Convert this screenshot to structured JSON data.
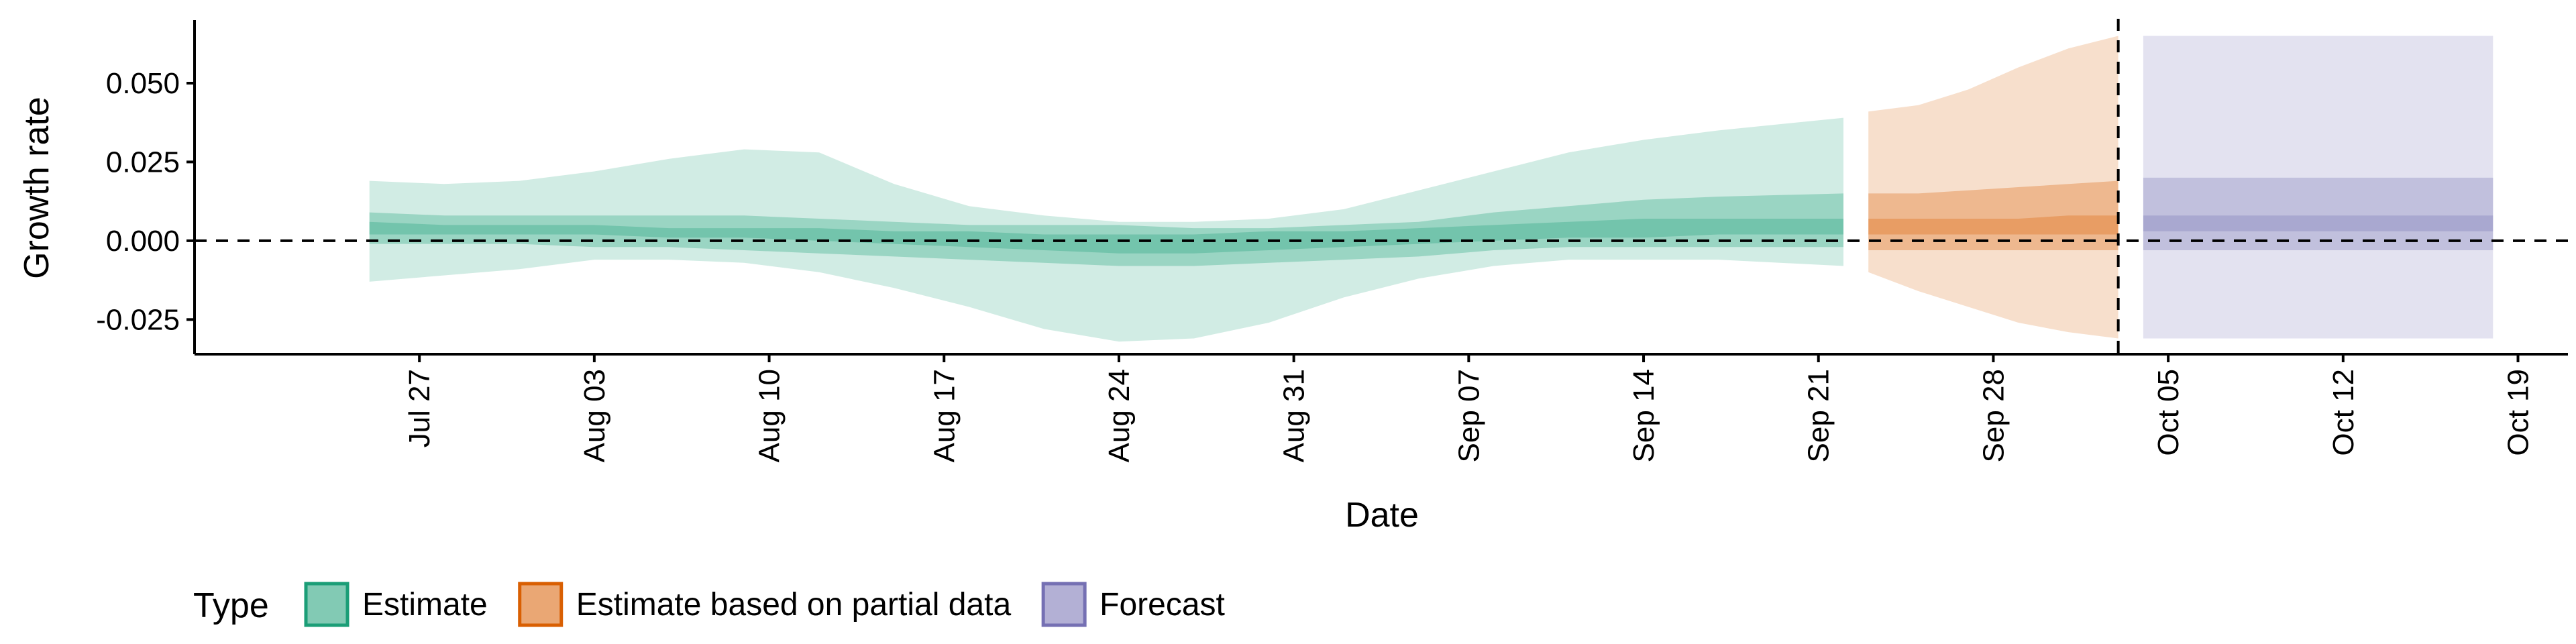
{
  "chart_data": {
    "type": "area",
    "xlabel": "Date",
    "ylabel": "Growth rate",
    "x_ticks": [
      "2020-07-27",
      "2020-08-03",
      "2020-08-10",
      "2020-08-17",
      "2020-08-24",
      "2020-08-31",
      "2020-09-07",
      "2020-09-14",
      "2020-09-21",
      "2020-09-28",
      "2020-10-05",
      "2020-10-12",
      "2020-10-19"
    ],
    "x_tick_labels": [
      "Jul 27",
      "Aug 03",
      "Aug 10",
      "Aug 17",
      "Aug 24",
      "Aug 31",
      "Sep 07",
      "Sep 14",
      "Sep 21",
      "Sep 28",
      "Oct 05",
      "Oct 12",
      "Oct 19"
    ],
    "xlim": [
      "2020-07-18",
      "2020-10-21"
    ],
    "y_ticks": [
      0.05,
      0.025,
      0.0,
      -0.025
    ],
    "y_tick_labels": [
      "0.050",
      "0.025",
      "0.000",
      "-0.025"
    ],
    "ylim": [
      -0.036,
      0.07
    ],
    "reference_lines": [
      {
        "axis": "y",
        "value": 0.0,
        "style": "dashed"
      },
      {
        "axis": "x",
        "value": "2020-10-03",
        "style": "dashed"
      }
    ],
    "legend": {
      "title": "Type",
      "position": "bottom",
      "entries": [
        {
          "label": "Estimate",
          "color": "#1b9e77"
        },
        {
          "label": "Estimate based on partial data",
          "color": "#d95f02"
        },
        {
          "label": "Forecast",
          "color": "#7570b3"
        }
      ]
    },
    "series": [
      {
        "name": "Estimate",
        "color": "#1b9e77",
        "x": [
          "2020-07-25",
          "2020-07-28",
          "2020-07-31",
          "2020-08-03",
          "2020-08-06",
          "2020-08-09",
          "2020-08-12",
          "2020-08-15",
          "2020-08-18",
          "2020-08-21",
          "2020-08-24",
          "2020-08-27",
          "2020-08-30",
          "2020-09-02",
          "2020-09-05",
          "2020-09-08",
          "2020-09-11",
          "2020-09-14",
          "2020-09-17",
          "2020-09-22"
        ],
        "upper_90": [
          0.019,
          0.018,
          0.019,
          0.022,
          0.026,
          0.029,
          0.028,
          0.018,
          0.011,
          0.008,
          0.006,
          0.006,
          0.007,
          0.01,
          0.016,
          0.022,
          0.028,
          0.032,
          0.035,
          0.039
        ],
        "upper_50": [
          0.009,
          0.008,
          0.008,
          0.008,
          0.008,
          0.008,
          0.007,
          0.006,
          0.005,
          0.005,
          0.005,
          0.004,
          0.004,
          0.005,
          0.006,
          0.009,
          0.011,
          0.013,
          0.014,
          0.015
        ],
        "upper_20": [
          0.006,
          0.005,
          0.005,
          0.005,
          0.004,
          0.004,
          0.004,
          0.003,
          0.003,
          0.002,
          0.002,
          0.002,
          0.003,
          0.003,
          0.004,
          0.005,
          0.006,
          0.007,
          0.007,
          0.007
        ],
        "lower_20": [
          0.002,
          0.002,
          0.002,
          0.002,
          0.001,
          0.001,
          0.0,
          -0.001,
          -0.002,
          -0.003,
          -0.004,
          -0.004,
          -0.003,
          -0.002,
          -0.001,
          0.0,
          0.001,
          0.001,
          0.002,
          0.002
        ],
        "lower_50": [
          -0.001,
          -0.001,
          -0.001,
          -0.002,
          -0.002,
          -0.003,
          -0.004,
          -0.005,
          -0.006,
          -0.007,
          -0.008,
          -0.008,
          -0.007,
          -0.006,
          -0.005,
          -0.003,
          -0.002,
          -0.002,
          -0.002,
          -0.002
        ],
        "lower_90": [
          -0.013,
          -0.011,
          -0.009,
          -0.006,
          -0.006,
          -0.007,
          -0.01,
          -0.015,
          -0.021,
          -0.028,
          -0.032,
          -0.031,
          -0.026,
          -0.018,
          -0.012,
          -0.008,
          -0.006,
          -0.006,
          -0.006,
          -0.008
        ]
      },
      {
        "name": "Estimate based on partial data",
        "color": "#d95f02",
        "x": [
          "2020-09-23",
          "2020-09-25",
          "2020-09-27",
          "2020-09-29",
          "2020-10-01",
          "2020-10-03"
        ],
        "upper_90": [
          0.041,
          0.043,
          0.048,
          0.055,
          0.061,
          0.065
        ],
        "upper_50": [
          0.015,
          0.015,
          0.016,
          0.017,
          0.018,
          0.019
        ],
        "upper_20": [
          0.007,
          0.007,
          0.007,
          0.007,
          0.008,
          0.008
        ],
        "lower_20": [
          0.002,
          0.002,
          0.002,
          0.002,
          0.002,
          0.002
        ],
        "lower_50": [
          -0.003,
          -0.003,
          -0.003,
          -0.003,
          -0.003,
          -0.003
        ],
        "lower_90": [
          -0.01,
          -0.016,
          -0.021,
          -0.026,
          -0.029,
          -0.031
        ]
      },
      {
        "name": "Forecast",
        "color": "#7570b3",
        "x": [
          "2020-10-04",
          "2020-10-18"
        ],
        "upper_90": [
          0.065,
          0.065
        ],
        "upper_50": [
          0.02,
          0.02
        ],
        "upper_20": [
          0.008,
          0.008
        ],
        "lower_20": [
          0.003,
          0.003
        ],
        "lower_50": [
          -0.003,
          -0.003
        ],
        "lower_90": [
          -0.031,
          -0.031
        ]
      }
    ]
  }
}
